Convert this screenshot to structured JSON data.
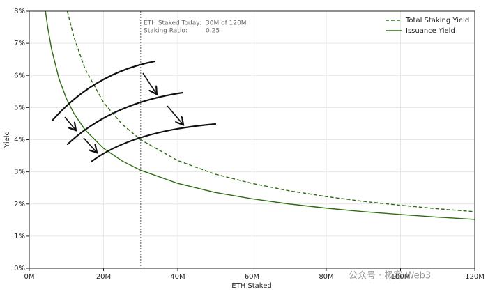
{
  "chart_data": {
    "type": "line",
    "xlabel": "ETH Staked",
    "ylabel": "Yield",
    "xlim": [
      0,
      120
    ],
    "ylim": [
      0,
      8
    ],
    "xticks": [
      {
        "value": 0,
        "label": "0M"
      },
      {
        "value": 20,
        "label": "20M"
      },
      {
        "value": 40,
        "label": "40M"
      },
      {
        "value": 60,
        "label": "60M"
      },
      {
        "value": 80,
        "label": "80M"
      },
      {
        "value": 100,
        "label": "100M"
      },
      {
        "value": 120,
        "label": "120M"
      }
    ],
    "yticks": [
      {
        "value": 0,
        "label": "0%"
      },
      {
        "value": 1,
        "label": "1%"
      },
      {
        "value": 2,
        "label": "2%"
      },
      {
        "value": 3,
        "label": "3%"
      },
      {
        "value": 4,
        "label": "4%"
      },
      {
        "value": 5,
        "label": "5%"
      },
      {
        "value": 6,
        "label": "6%"
      },
      {
        "value": 7,
        "label": "7%"
      },
      {
        "value": 8,
        "label": "8%"
      }
    ],
    "grid": true,
    "legend": "upper right",
    "vline": 30,
    "annotations": [
      "ETH Staked Today:",
      "30M of 120M",
      "Staking Ratio:",
      "0.25"
    ],
    "watermark": "公众号 · 极客 Web3",
    "series": [
      {
        "name": "Total Staking Yield",
        "color": "#2e6b12",
        "dash": true,
        "x": [
          10.25,
          12,
          15,
          20,
          25,
          30,
          40,
          50,
          60,
          70,
          80,
          90,
          100,
          110,
          120
        ],
        "values": [
          8.0,
          7.2,
          6.21,
          5.16,
          4.48,
          4.0,
          3.35,
          2.93,
          2.64,
          2.41,
          2.23,
          2.08,
          1.96,
          1.85,
          1.76
        ]
      },
      {
        "name": "Issuance Yield",
        "color": "#2e6b12",
        "dash": false,
        "x": [
          4.36,
          5,
          6,
          8,
          10,
          12,
          15,
          20,
          25,
          30,
          40,
          50,
          60,
          70,
          80,
          90,
          100,
          110,
          120
        ],
        "values": [
          8.0,
          7.47,
          6.82,
          5.9,
          5.28,
          4.82,
          4.31,
          3.73,
          3.34,
          3.05,
          2.64,
          2.36,
          2.16,
          2.0,
          1.87,
          1.76,
          1.67,
          1.59,
          1.52
        ]
      }
    ]
  }
}
